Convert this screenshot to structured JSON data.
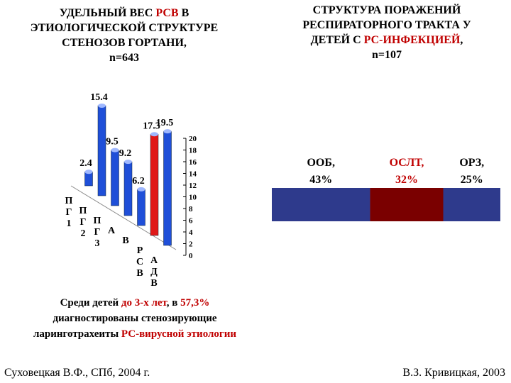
{
  "chart_data": [
    {
      "type": "bar3d",
      "title": [
        "УДЕЛЬНЫЙ ВЕС ",
        "РСВ",
        " В",
        "ЭТИОЛОГИЧЕСКОЙ СТРУКТУРЕ",
        "СТЕНОЗОВ ГОРТАНИ,"
      ],
      "subtitle": "n=643",
      "categories": [
        "ПГ1",
        "ПГ2",
        "ПГ3",
        "А",
        "В",
        "РСВ",
        "АДВ"
      ],
      "values": [
        2.4,
        15.4,
        9.5,
        9.2,
        6.2,
        17.3,
        19.5
      ],
      "colors": [
        "#1f4fd8",
        "#1f4fd8",
        "#1f4fd8",
        "#1f4fd8",
        "#1f4fd8",
        "#e01818",
        "#1f4fd8"
      ],
      "ylim": [
        0,
        20
      ],
      "yticks": [
        0,
        2,
        4,
        6,
        8,
        10,
        12,
        14,
        16,
        18,
        20
      ]
    },
    {
      "type": "stacked-hbar",
      "title": [
        "СТРУКТУРА ПОРАЖЕНИЙ",
        "РЕСПИРАТОРНОГО ТРАКТА У",
        "ДЕТЕЙ С ",
        "РС-ИНФЕКЦИЕЙ",
        ","
      ],
      "subtitle": "n=107",
      "series": [
        {
          "name": "ООБ,",
          "color": "#2e3a8c",
          "values": [
            43
          ],
          "value_labels": [
            "43%"
          ]
        },
        {
          "name": "ОСЛТ,",
          "color": "#7a0000",
          "values": [
            32
          ],
          "value_labels": [
            "32%"
          ]
        },
        {
          "name": "ОРЗ,",
          "color": "#2e3a8c",
          "values": [
            25
          ],
          "value_labels": [
            "25%"
          ]
        }
      ],
      "xlim": [
        0,
        100
      ]
    }
  ],
  "note": [
    "Среди детей ",
    "до 3-х лет",
    ", в ",
    "57,3%",
    " диагностированы стенозирующие ларинготрахеиты ",
    "РС-вирусной этиологии"
  ],
  "footer_left": "Суховецкая В.Ф., СПб, 2004 г.",
  "footer_right": "В.З. Кривицкая, 2003"
}
